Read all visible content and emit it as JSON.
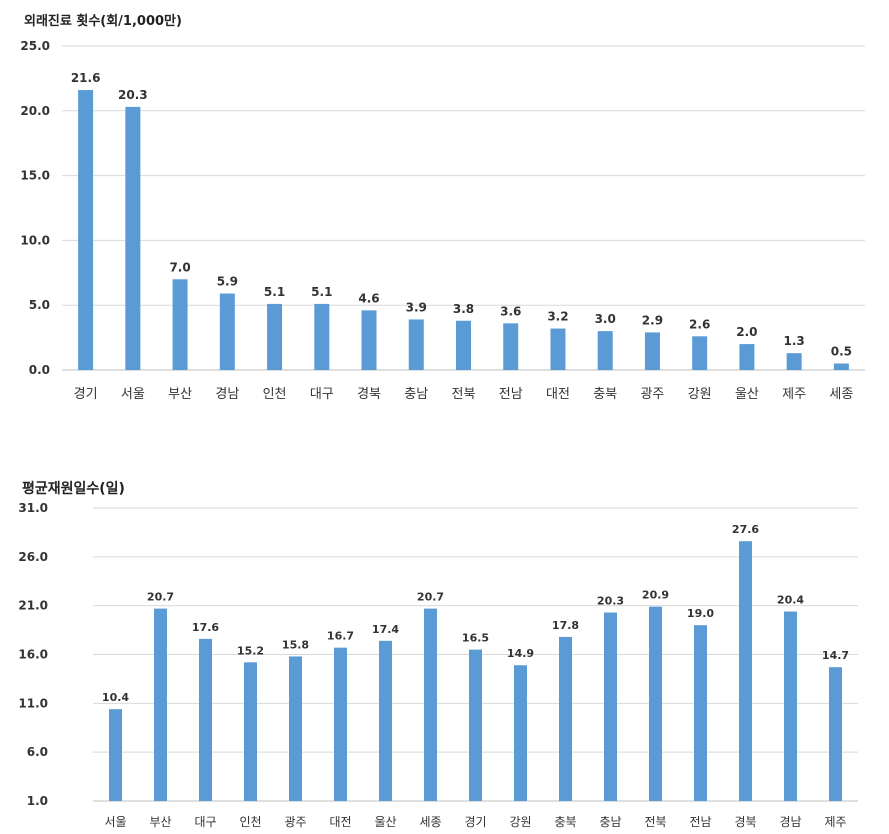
{
  "chart_data": [
    {
      "type": "bar",
      "title": "외래진료 횟수(회/1,000만)",
      "categories": [
        "경기",
        "서울",
        "부산",
        "경남",
        "인천",
        "대구",
        "경북",
        "충남",
        "전북",
        "전남",
        "대전",
        "충북",
        "광주",
        "강원",
        "울산",
        "제주",
        "세종"
      ],
      "values": [
        21.6,
        20.3,
        7.0,
        5.9,
        5.1,
        5.1,
        4.6,
        3.9,
        3.8,
        3.6,
        3.2,
        3.0,
        2.9,
        2.6,
        2.0,
        1.3,
        0.5
      ],
      "data_labels": [
        "21.6",
        "20.3",
        "7.0",
        "5.9",
        "5.1",
        "5.1",
        "4.6",
        "3.9",
        "3.8",
        "3.6",
        "3.2",
        "3.0",
        "2.9",
        "2.6",
        "2.0",
        "1.3",
        "0.5"
      ],
      "yticks": [
        "0.0",
        "5.0",
        "10.0",
        "15.0",
        "20.0",
        "25.0"
      ],
      "ylim": [
        0,
        25
      ],
      "grid": true,
      "color": "#5b9bd5"
    },
    {
      "type": "bar",
      "title": "평균재원일수(일)",
      "categories": [
        "서울",
        "부산",
        "대구",
        "인천",
        "광주",
        "대전",
        "울산",
        "세종",
        "경기",
        "강원",
        "충북",
        "충남",
        "전북",
        "전남",
        "경북",
        "경남",
        "제주"
      ],
      "values": [
        10.4,
        20.7,
        17.6,
        15.2,
        15.8,
        16.7,
        17.4,
        20.7,
        16.5,
        14.9,
        17.8,
        20.3,
        20.9,
        19.0,
        27.6,
        20.4,
        14.7
      ],
      "data_labels": [
        "10.4",
        "20.7",
        "17.6",
        "15.2",
        "15.8",
        "16.7",
        "17.4",
        "20.7",
        "16.5",
        "14.9",
        "17.8",
        "20.3",
        "20.9",
        "19.0",
        "27.6",
        "20.4",
        "14.7"
      ],
      "yticks": [
        "1.0",
        "6.0",
        "11.0",
        "16.0",
        "21.0",
        "26.0",
        "31.0"
      ],
      "ylim": [
        1,
        31
      ],
      "grid": true,
      "color": "#5b9bd5"
    }
  ]
}
